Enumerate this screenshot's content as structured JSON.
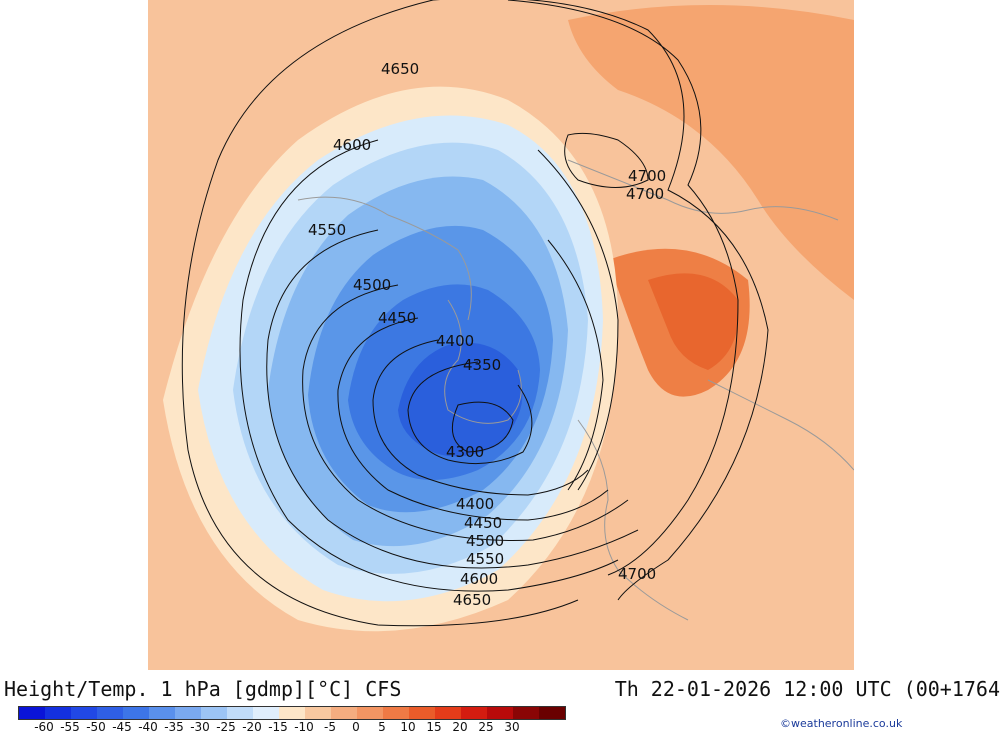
{
  "map": {
    "title": "Height/Temp. 1 hPa [gdmp][°C] CFS",
    "datetime": "Th 22-01-2026 12:00 UTC (00+1764",
    "credit": "©weatheronline.co.uk",
    "contour_labels": [
      {
        "id": "c4650a",
        "text": "4650"
      },
      {
        "id": "c4600a",
        "text": "4600"
      },
      {
        "id": "c4550a",
        "text": "4550"
      },
      {
        "id": "c4500a",
        "text": "4500"
      },
      {
        "id": "c4450a",
        "text": "4450"
      },
      {
        "id": "c4400a",
        "text": "4400"
      },
      {
        "id": "c4350a",
        "text": "4350"
      },
      {
        "id": "c4300a",
        "text": "4300"
      },
      {
        "id": "c4700a",
        "text": "4700"
      },
      {
        "id": "c4700b",
        "text": "4700"
      },
      {
        "id": "c4400b",
        "text": "4400"
      },
      {
        "id": "c4450b",
        "text": "4450"
      },
      {
        "id": "c4500b",
        "text": "4500"
      },
      {
        "id": "c4550b",
        "text": "4550"
      },
      {
        "id": "c4600b",
        "text": "4600"
      },
      {
        "id": "c4650b",
        "text": "4650"
      },
      {
        "id": "c4700c",
        "text": "4700"
      }
    ],
    "colors": {
      "warm_bg": "#f8c39b",
      "warm_mid": "#f5a570",
      "warm_hot": "#ee7f45",
      "warm_hotter": "#e8662e",
      "cream": "#fde6c8",
      "cold1": "#d8ebfb",
      "cold2": "#b3d6f7",
      "cold3": "#86b8f0",
      "cold4": "#5a96e8",
      "cold5": "#3c78e2",
      "cold6": "#2a5fdc",
      "coast": "#9a9a9a"
    }
  },
  "colorbar": {
    "labels": [
      "-60",
      "-55",
      "-50",
      "-45",
      "-40",
      "-35",
      "-30",
      "-25",
      "-20",
      "-15",
      "-10",
      "-5",
      "0",
      "5",
      "10",
      "15",
      "20",
      "25",
      "30"
    ],
    "colors": [
      "#0a14d8",
      "#1430e0",
      "#2148e6",
      "#2f5fe6",
      "#3d75e8",
      "#5a90ec",
      "#7aa9f0",
      "#9cc4f5",
      "#c1dcf9",
      "#e0eefc",
      "#fde6c8",
      "#f8c8a0",
      "#f5ad80",
      "#f39563",
      "#ef7a45",
      "#ea5c2a",
      "#e43c1a",
      "#d41c10",
      "#b80a0a",
      "#8a0505",
      "#6a0000"
    ]
  }
}
